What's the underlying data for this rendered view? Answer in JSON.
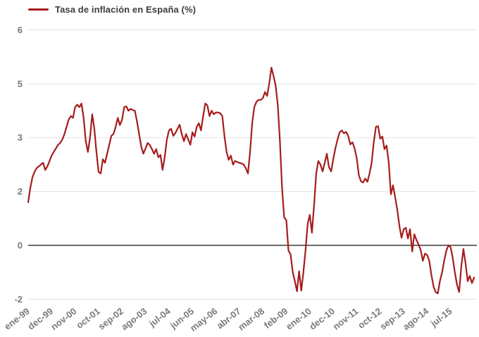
{
  "legend": {
    "label": "Tasa de inflación en España (%)"
  },
  "chart_data": {
    "type": "line",
    "title": "Tasa de inflación en España (%)",
    "legend_position": "top-left",
    "grid": "horizontal-only",
    "x_tick_labels": [
      "ene-99",
      "dec-99",
      "nov-00",
      "oct-01",
      "sep-02",
      "ago-03",
      "jul-04",
      "jun-05",
      "may-06",
      "abr-07",
      "mar-08",
      "feb-09",
      "ene-10",
      "dec-10",
      "nov-11",
      "oct-12",
      "sep-13",
      "ago-14",
      "jul-15"
    ],
    "x_tick_every_months": 11,
    "x_label_rotation_deg": -38,
    "y_ticks": [
      {
        "value": 6,
        "label": "6"
      },
      {
        "value": 4.5,
        "label": "5"
      },
      {
        "value": 3,
        "label": "3"
      },
      {
        "value": 1.5,
        "label": "2"
      },
      {
        "value": 0,
        "label": "0"
      },
      {
        "value": -1.5,
        "label": "-2"
      }
    ],
    "ylim": [
      -2.1,
      6
    ],
    "series": [
      {
        "name": "Tasa de inflación en España (%)",
        "first_point_label": "ene-99",
        "frequency": "monthly",
        "values": [
          1.2,
          1.6,
          1.9,
          2.05,
          2.15,
          2.2,
          2.25,
          2.3,
          2.1,
          2.2,
          2.35,
          2.5,
          2.6,
          2.7,
          2.8,
          2.85,
          2.95,
          3.1,
          3.3,
          3.5,
          3.6,
          3.55,
          3.85,
          3.92,
          3.85,
          3.95,
          3.55,
          2.9,
          2.6,
          3.0,
          3.65,
          3.25,
          2.6,
          2.05,
          2.0,
          2.4,
          2.3,
          2.55,
          2.8,
          3.05,
          3.1,
          3.3,
          3.55,
          3.35,
          3.5,
          3.85,
          3.87,
          3.75,
          3.8,
          3.77,
          3.75,
          3.45,
          3.1,
          2.75,
          2.55,
          2.7,
          2.85,
          2.8,
          2.68,
          2.55,
          2.68,
          2.45,
          2.52,
          2.1,
          2.45,
          2.95,
          3.2,
          3.25,
          3.05,
          3.13,
          3.25,
          3.36,
          3.1,
          2.9,
          3.1,
          2.95,
          2.8,
          3.15,
          3.03,
          3.3,
          3.4,
          3.2,
          3.6,
          3.95,
          3.9,
          3.6,
          3.75,
          3.65,
          3.7,
          3.7,
          3.68,
          3.6,
          3.05,
          2.6,
          2.38,
          2.5,
          2.25,
          2.35,
          2.32,
          2.3,
          2.28,
          2.25,
          2.15,
          2.0,
          2.6,
          3.4,
          3.85,
          4.0,
          4.05,
          4.05,
          4.1,
          4.27,
          4.16,
          4.5,
          4.95,
          4.72,
          4.45,
          3.9,
          2.9,
          1.6,
          0.78,
          0.7,
          -0.15,
          -0.25,
          -0.75,
          -1.0,
          -1.28,
          -0.72,
          -1.26,
          -0.75,
          -0.15,
          0.6,
          0.85,
          0.35,
          1.1,
          2.0,
          2.35,
          2.25,
          2.06,
          2.3,
          2.55,
          2.18,
          2.06,
          2.4,
          2.7,
          2.95,
          3.15,
          3.2,
          3.12,
          3.16,
          3.05,
          2.81,
          2.87,
          2.7,
          2.43,
          1.96,
          1.78,
          1.75,
          1.86,
          1.77,
          2.0,
          2.3,
          2.87,
          3.3,
          3.32,
          2.97,
          3.03,
          2.68,
          2.78,
          2.3,
          1.42,
          1.67,
          1.35,
          0.99,
          0.54,
          0.21,
          0.45,
          0.49,
          0.19,
          0.45,
          -0.17,
          0.31,
          0.15,
          0.02,
          -0.14,
          -0.43,
          -0.23,
          -0.27,
          -0.43,
          -0.82,
          -1.15,
          -1.3,
          -1.34,
          -1.0,
          -0.75,
          -0.43,
          -0.15,
          0.0,
          -0.05,
          -0.35,
          -0.75,
          -1.1,
          -1.3,
          -0.6,
          -0.1,
          -0.5,
          -1.0,
          -0.85,
          -1.05,
          -0.9
        ]
      }
    ],
    "line_color": "#A61C1C",
    "grid_color": "#E3E3E3",
    "zero_line_color": "#6b6b6b",
    "axis_label_color": "#7a7a7a",
    "legend_text_color": "#3d3d3d",
    "background": "#FFFFFF"
  }
}
